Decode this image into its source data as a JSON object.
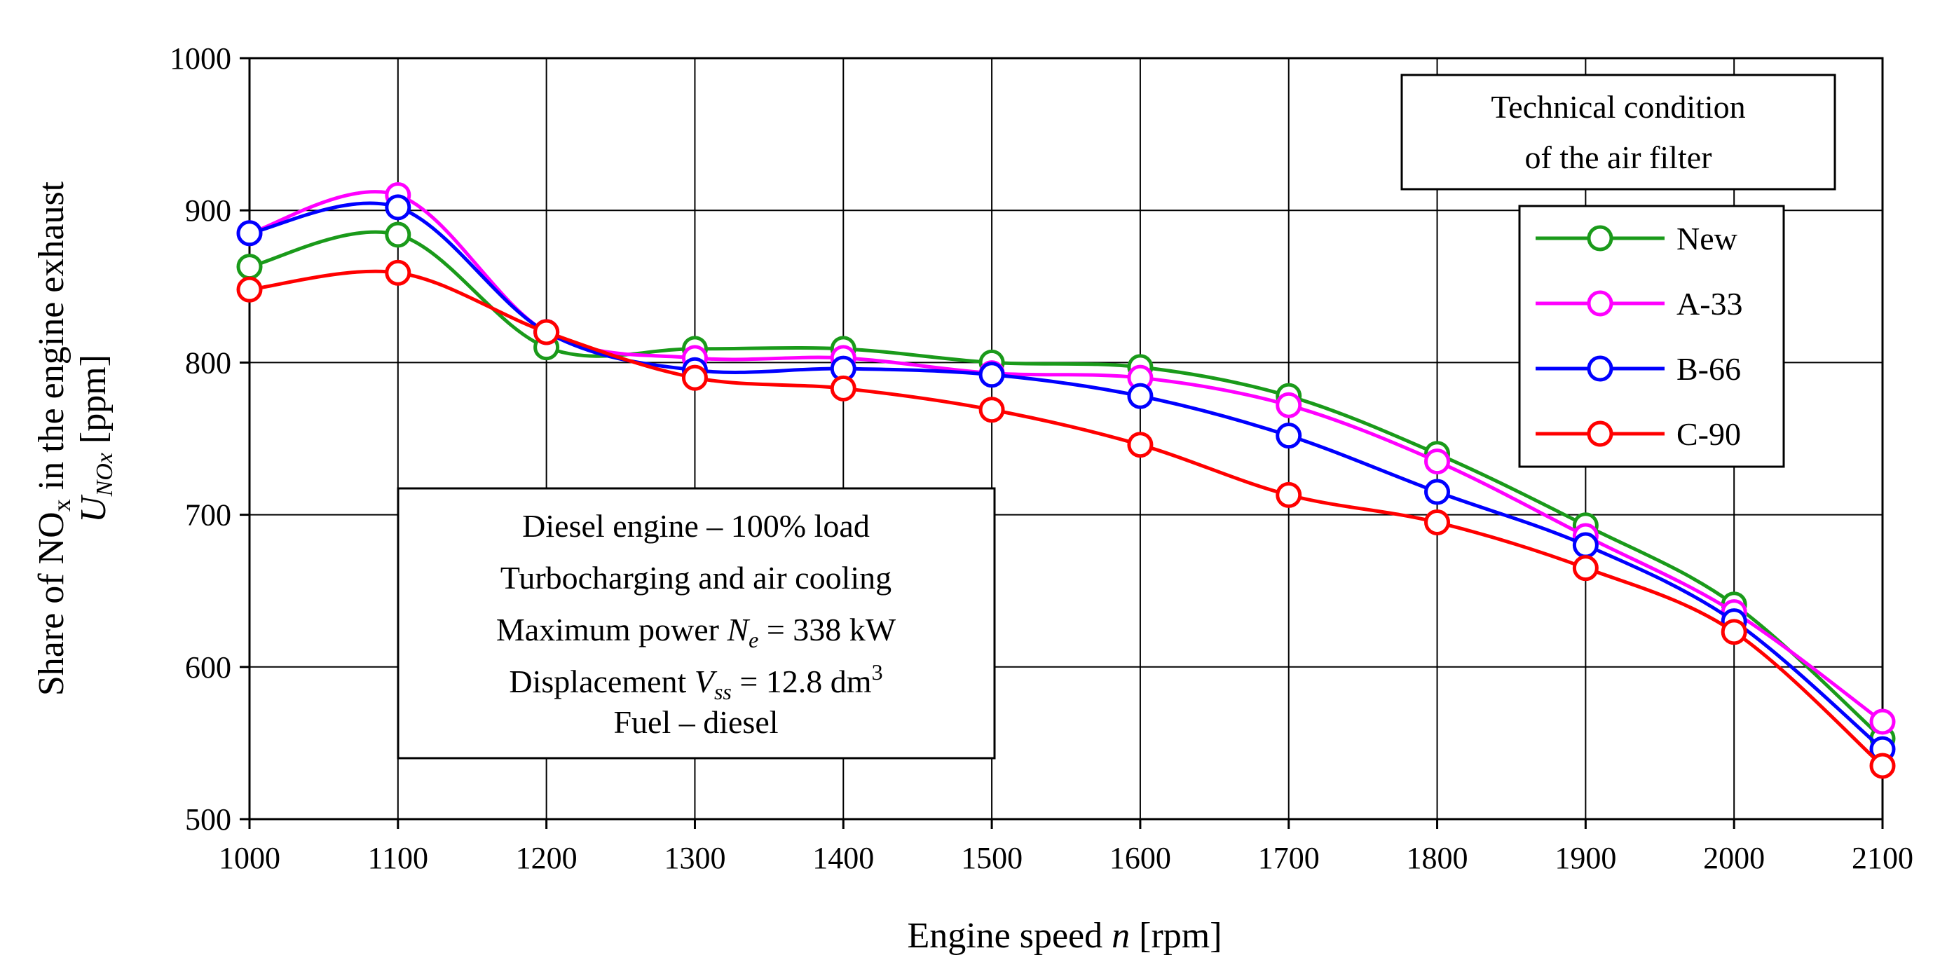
{
  "chart_data": {
    "type": "line",
    "x": [
      1000,
      1100,
      1200,
      1300,
      1400,
      1500,
      1600,
      1700,
      1800,
      1900,
      2000,
      2100
    ],
    "xlim": [
      1000,
      2100
    ],
    "ylim": [
      500,
      1000
    ],
    "xticks": [
      1000,
      1100,
      1200,
      1300,
      1400,
      1500,
      1600,
      1700,
      1800,
      1900,
      2000,
      2100
    ],
    "yticks": [
      500,
      600,
      700,
      800,
      900,
      1000
    ],
    "grid": true,
    "xlabel": {
      "prefix": "Engine speed ",
      "var": "n",
      "suffix": " [rpm]"
    },
    "ylabel": {
      "line1": {
        "prefix": "Share of  NO",
        "sub": "x",
        "suffix": " in the engine exhaust"
      },
      "line2": {
        "var": "U",
        "sub": "NOx",
        "suffix": " [ppm]"
      }
    },
    "legend_title": [
      "Technical condition",
      "of the air filter"
    ],
    "legend_position": "top-right",
    "series": [
      {
        "name": "New",
        "color": "#1a9a1a",
        "values": [
          863,
          884,
          810,
          809,
          809,
          800,
          797,
          778,
          740,
          693,
          641,
          553
        ]
      },
      {
        "name": "A-33",
        "color": "#ff00ff",
        "values": [
          885,
          910,
          820,
          803,
          803,
          793,
          790,
          772,
          735,
          686,
          636,
          564
        ]
      },
      {
        "name": "B-66",
        "color": "#0000ff",
        "values": [
          885,
          902,
          820,
          795,
          796,
          792,
          778,
          752,
          715,
          680,
          630,
          546
        ]
      },
      {
        "name": "C-90",
        "color": "#ff0000",
        "values": [
          848,
          859,
          820,
          790,
          783,
          769,
          746,
          713,
          695,
          665,
          623,
          535
        ]
      }
    ],
    "annotation": {
      "line1": "Diesel engine – 100% load",
      "line2": "Turbocharging and air cooling",
      "line3": {
        "prefix": "Maximum power ",
        "var": "N",
        "sub": "e",
        "suffix": " = 338 kW"
      },
      "line4": {
        "prefix": "Displacement ",
        "var": "V",
        "sub": "ss",
        "suffix": " = 12.8 dm",
        "sup": "3"
      },
      "line5": "Fuel – diesel"
    }
  }
}
